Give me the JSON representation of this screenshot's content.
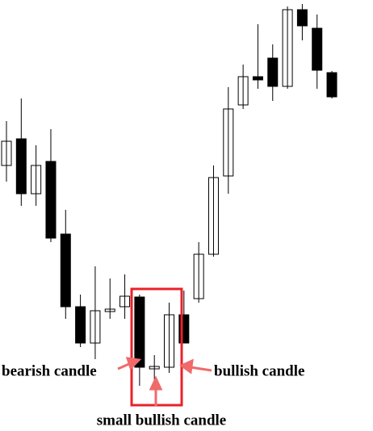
{
  "chart_data": {
    "type": "candlestick",
    "open": [
      329,
      362,
      294,
      334,
      244,
      154,
      109,
      148,
      154,
      166,
      77,
      79,
      144,
      164,
      219,
      316,
      404,
      439,
      462,
      427,
      522,
      499,
      444
    ],
    "high": [
      384,
      412,
      354,
      374,
      274,
      169,
      204,
      189,
      194,
      169,
      94,
      159,
      174,
      234,
      329,
      426,
      454,
      504,
      479,
      526,
      529,
      516,
      446
    ],
    "low": [
      309,
      279,
      279,
      234,
      139,
      104,
      89,
      139,
      139,
      56,
      54,
      72,
      109,
      159,
      216,
      294,
      399,
      424,
      409,
      424,
      484,
      424,
      412
    ],
    "close": [
      359,
      294,
      329,
      239,
      154,
      109,
      149,
      151,
      167,
      79,
      80,
      144,
      109,
      219,
      314,
      399,
      439,
      435,
      427,
      522,
      502,
      447,
      414
    ],
    "ylim": [
      0,
      534
    ],
    "up_color": "#ffffff",
    "down_color": "#000000",
    "edge_color": "#000000",
    "annotations": [
      "bearish candle",
      "bullish candle",
      "small bullish candle"
    ]
  }
}
